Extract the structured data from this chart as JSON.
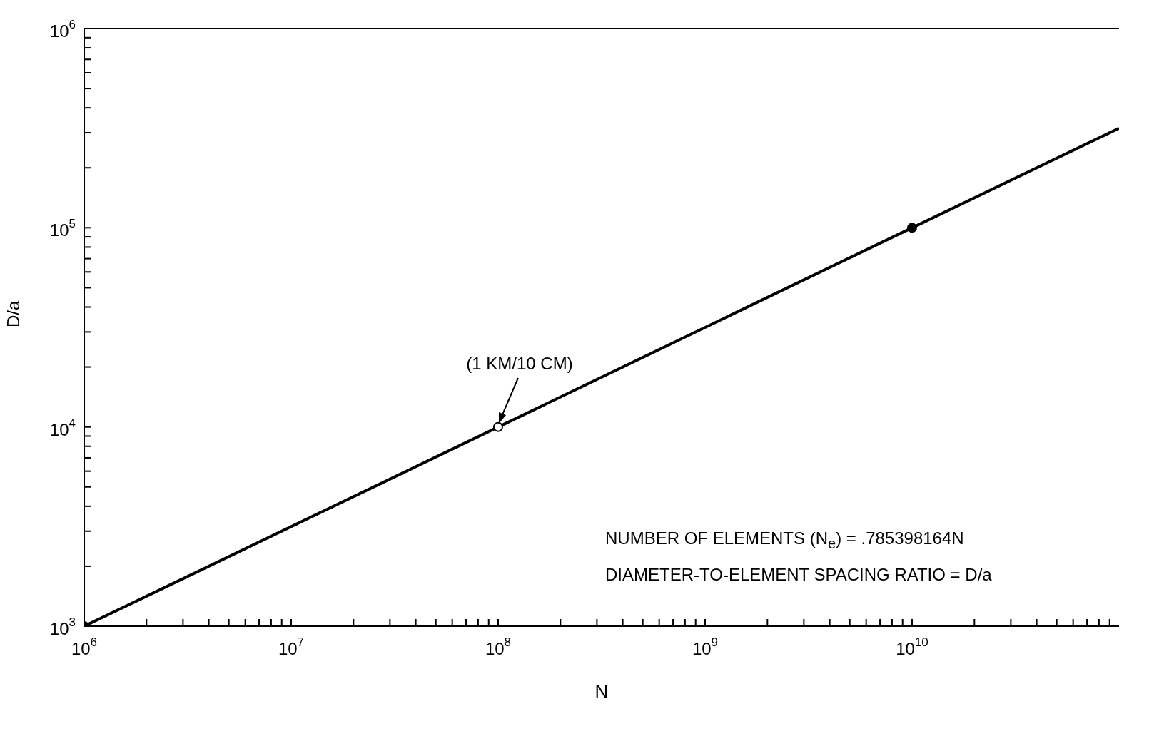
{
  "chart_data": {
    "type": "line",
    "xlabel": "N",
    "ylabel": "D/a",
    "log": "xy",
    "xlim": [
      1000000,
      100000000000
    ],
    "ylim": [
      1000,
      1000000
    ],
    "xticks": [
      {
        "value": 1000000,
        "label": "10$^{6}$"
      },
      {
        "value": 2000000,
        "label": null
      },
      {
        "value": 3000000,
        "label": null
      },
      {
        "value": 4000000,
        "label": null
      },
      {
        "value": 5000000,
        "label": null
      },
      {
        "value": 6000000,
        "label": null
      },
      {
        "value": 7000000,
        "label": null
      },
      {
        "value": 8000000,
        "label": null
      },
      {
        "value": 9000000,
        "label": null
      },
      {
        "value": 10000000,
        "label": "10$^{7}$"
      },
      {
        "value": 20000000,
        "label": null
      },
      {
        "value": 30000000,
        "label": null
      },
      {
        "value": 40000000,
        "label": null
      },
      {
        "value": 50000000,
        "label": null
      },
      {
        "value": 60000000,
        "label": null
      },
      {
        "value": 70000000,
        "label": null
      },
      {
        "value": 80000000,
        "label": null
      },
      {
        "value": 90000000,
        "label": null
      },
      {
        "value": 100000000,
        "label": "10$^{8}$"
      },
      {
        "value": 200000000,
        "label": null
      },
      {
        "value": 300000000,
        "label": null
      },
      {
        "value": 400000000,
        "label": null
      },
      {
        "value": 500000000,
        "label": null
      },
      {
        "value": 600000000,
        "label": null
      },
      {
        "value": 700000000,
        "label": null
      },
      {
        "value": 800000000,
        "label": null
      },
      {
        "value": 900000000,
        "label": null
      },
      {
        "value": 1000000000,
        "label": "10$^{9}$"
      },
      {
        "value": 2000000000,
        "label": null
      },
      {
        "value": 3000000000,
        "label": null
      },
      {
        "value": 4000000000,
        "label": null
      },
      {
        "value": 5000000000,
        "label": null
      },
      {
        "value": 6000000000,
        "label": null
      },
      {
        "value": 7000000000,
        "label": null
      },
      {
        "value": 8000000000,
        "label": null
      },
      {
        "value": 9000000000,
        "label": null
      },
      {
        "value": 10000000000,
        "label": "10$^{10}$"
      },
      {
        "value": 20000000000,
        "label": null
      },
      {
        "value": 30000000000,
        "label": null
      },
      {
        "value": 40000000000,
        "label": null
      },
      {
        "value": 50000000000,
        "label": null
      },
      {
        "value": 60000000000,
        "label": null
      },
      {
        "value": 70000000000,
        "label": null
      },
      {
        "value": 80000000000,
        "label": null
      },
      {
        "value": 90000000000,
        "label": null
      }
    ],
    "yticks": [
      {
        "value": 1000,
        "label": "10$^{3}$"
      },
      {
        "value": 2000,
        "label": null
      },
      {
        "value": 3000,
        "label": null
      },
      {
        "value": 4000,
        "label": null
      },
      {
        "value": 5000,
        "label": null
      },
      {
        "value": 6000,
        "label": null
      },
      {
        "value": 7000,
        "label": null
      },
      {
        "value": 8000,
        "label": null
      },
      {
        "value": 9000,
        "label": null
      },
      {
        "value": 10000,
        "label": "10$^{4}$"
      },
      {
        "value": 20000,
        "label": null
      },
      {
        "value": 30000,
        "label": null
      },
      {
        "value": 40000,
        "label": null
      },
      {
        "value": 50000,
        "label": null
      },
      {
        "value": 60000,
        "label": null
      },
      {
        "value": 70000,
        "label": null
      },
      {
        "value": 80000,
        "label": null
      },
      {
        "value": 90000,
        "label": null
      },
      {
        "value": 100000,
        "label": "10$^{5}$"
      },
      {
        "value": 200000,
        "label": null
      },
      {
        "value": 300000,
        "label": null
      },
      {
        "value": 400000,
        "label": null
      },
      {
        "value": 500000,
        "label": null
      },
      {
        "value": 600000,
        "label": null
      },
      {
        "value": 700000,
        "label": null
      },
      {
        "value": 800000,
        "label": null
      },
      {
        "value": 900000,
        "label": null
      },
      {
        "value": 1000000,
        "label": "10$^{6}$"
      }
    ],
    "series": [
      {
        "type": "line",
        "color": "#000000",
        "marker": "none",
        "x": [
          1000000,
          100000000000
        ],
        "values": [
          1000,
          316000
        ]
      },
      {
        "type": "scatter",
        "color": "#000000",
        "marker": "circle",
        "colors": [
          "#000000",
          "#ffffff",
          "#000000"
        ],
        "x": [
          1000000,
          100000000,
          10000000000
        ],
        "values": [
          1000,
          10000,
          100000
        ]
      }
    ],
    "annotations": [
      "(1 KM/10 CM)",
      "NUMBER OF ELEMENTS (N$_{e}$) = .785398164N",
      "DIAMETER-TO-ELEMENT SPACING RATIO = D/a"
    ]
  }
}
